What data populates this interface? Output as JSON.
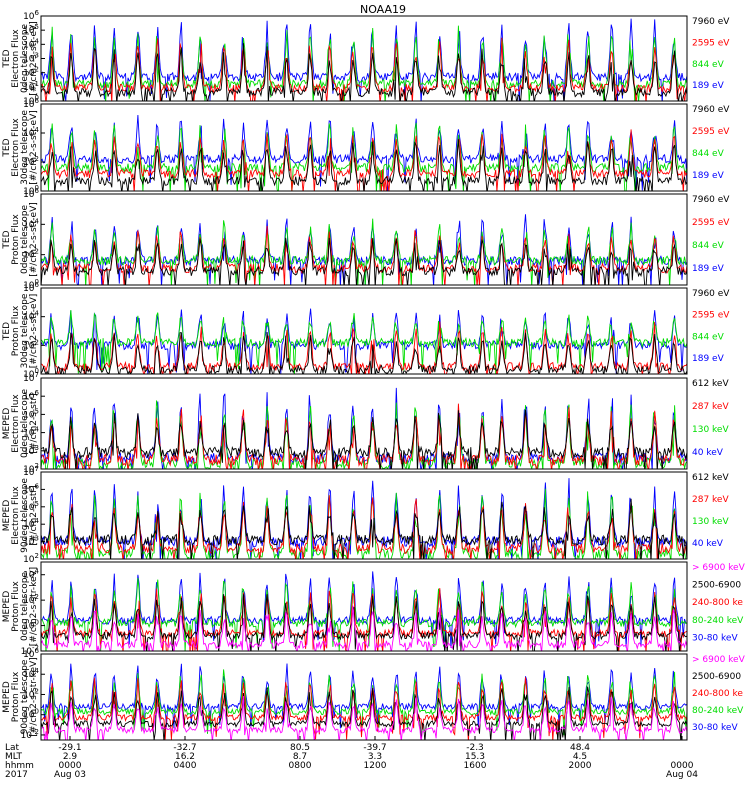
{
  "title": "NOAA19",
  "colors": {
    "black": "#000000",
    "red": "#ff0000",
    "green": "#00dd00",
    "blue": "#0000ff",
    "magenta": "#ff00ff"
  },
  "panels": [
    {
      "id": "ted-e-0deg",
      "ylabel": [
        "TED",
        "Electron Flux",
        "0deg telescope",
        "[#/cm2-s-str-eV]"
      ],
      "yticks": [
        "10^0",
        "10^1",
        "10^2",
        "10^3",
        "10^4",
        "10^5",
        "10^6"
      ],
      "log_min": 0,
      "log_max": 6,
      "legend": [
        {
          "label": "7960 eV",
          "color": "#000000"
        },
        {
          "label": "2595 eV",
          "color": "#ff0000"
        },
        {
          "label": "844 eV",
          "color": "#00dd00"
        },
        {
          "label": "189 eV",
          "color": "#0000ff"
        }
      ]
    },
    {
      "id": "ted-e-30deg",
      "ylabel": [
        "TED",
        "Electron Flux",
        "30deg telescope",
        "[#/cm2-s-str-eV]"
      ],
      "yticks": [
        "10^0",
        "10^2",
        "10^4",
        "10^6"
      ],
      "log_min": 0,
      "log_max": 6,
      "legend": [
        {
          "label": "7960 eV",
          "color": "#000000"
        },
        {
          "label": "2595 eV",
          "color": "#ff0000"
        },
        {
          "label": "844 eV",
          "color": "#00dd00"
        },
        {
          "label": "189 eV",
          "color": "#0000ff"
        }
      ]
    },
    {
      "id": "ted-p-0deg",
      "ylabel": [
        "TED",
        "Proton Flux",
        "0deg telescope",
        "[#/cm2-s-str-eV]"
      ],
      "yticks": [
        "10^0",
        "10^2",
        "10^4",
        "10^6"
      ],
      "log_min": 0,
      "log_max": 6,
      "legend": [
        {
          "label": "7960 eV",
          "color": "#000000"
        },
        {
          "label": "2595 eV",
          "color": "#ff0000"
        },
        {
          "label": "844 eV",
          "color": "#00dd00"
        },
        {
          "label": "189 eV",
          "color": "#0000ff"
        }
      ]
    },
    {
      "id": "ted-p-30deg",
      "ylabel": [
        "TED",
        "Proton Flux",
        "30deg telescope",
        "[#/cm2-s-str-eV]"
      ],
      "yticks": [
        "10^0",
        "10^2",
        "10^4",
        "10^6"
      ],
      "log_min": 0,
      "log_max": 6,
      "legend": [
        {
          "label": "7960 eV",
          "color": "#000000"
        },
        {
          "label": "2595 eV",
          "color": "#ff0000"
        },
        {
          "label": "844 eV",
          "color": "#00dd00"
        },
        {
          "label": "189 eV",
          "color": "#0000ff"
        }
      ]
    },
    {
      "id": "meped-e-0deg",
      "ylabel": [
        "MEPED",
        "Electron Flux",
        "0deg telescope",
        "[#/cm2-s-str]"
      ],
      "yticks": [
        "10^2",
        "10^3",
        "10^4",
        "10^5",
        "10^6",
        "10^7"
      ],
      "log_min": 2,
      "log_max": 7,
      "legend": [
        {
          "label": "612 keV",
          "color": "#000000"
        },
        {
          "label": "287 keV",
          "color": "#ff0000"
        },
        {
          "label": "130 keV",
          "color": "#00dd00"
        },
        {
          "label": "40 keV",
          "color": "#0000ff"
        }
      ]
    },
    {
      "id": "meped-e-90deg",
      "ylabel": [
        "MEPED",
        "Electron Flux",
        "90deg telescope",
        "[#/cm2-s-str]"
      ],
      "yticks": [
        "10^2",
        "10^3",
        "10^4",
        "10^5",
        "10^6",
        "10^7"
      ],
      "log_min": 2,
      "log_max": 7,
      "legend": [
        {
          "label": "612 keV",
          "color": "#000000"
        },
        {
          "label": "287 keV",
          "color": "#ff0000"
        },
        {
          "label": "130 keV",
          "color": "#00dd00"
        },
        {
          "label": "40 keV",
          "color": "#0000ff"
        }
      ]
    },
    {
      "id": "meped-p-0deg",
      "ylabel": [
        "MEPED",
        "Proton Flux",
        "0deg telescope",
        "[#/cm2-s-str-keV]"
      ],
      "yticks": [
        "10^-2",
        "10^0",
        "10^2",
        "10^4"
      ],
      "log_min": -2,
      "log_max": 5,
      "legend": [
        {
          "label": "> 6900 keV",
          "color": "#ff00ff"
        },
        {
          "label": "2500-6900",
          "color": "#000000"
        },
        {
          "label": "240-800 ke",
          "color": "#ff0000"
        },
        {
          "label": "80-240 keV",
          "color": "#00dd00"
        },
        {
          "label": "30-80 keV",
          "color": "#0000ff"
        }
      ]
    },
    {
      "id": "meped-p-90deg",
      "ylabel": [
        "MEPED",
        "Proton Flux",
        "90deg telescope",
        "[#/cm2-s-str-keV]"
      ],
      "yticks": [
        "10^-2",
        "10^0",
        "10^2",
        "10^4",
        "10^6"
      ],
      "log_min": -2.5,
      "log_max": 6,
      "legend": [
        {
          "label": "> 6900 keV",
          "color": "#ff00ff"
        },
        {
          "label": "2500-6900",
          "color": "#000000"
        },
        {
          "label": "240-800 ke",
          "color": "#ff0000"
        },
        {
          "label": "80-240 keV",
          "color": "#00dd00"
        },
        {
          "label": "30-80 keV",
          "color": "#0000ff"
        }
      ]
    }
  ],
  "x_axis": {
    "row_labels": [
      "Lat",
      "MLT",
      "hhmm",
      "2017"
    ],
    "ticks": [
      {
        "lat": "-29.1",
        "mlt": "2.9",
        "hhmm": "0000",
        "date": "Aug 03"
      },
      {
        "lat": "-32.7",
        "mlt": "16.2",
        "hhmm": "0400",
        "date": ""
      },
      {
        "lat": "80.5",
        "mlt": "8.7",
        "hhmm": "0800",
        "date": ""
      },
      {
        "lat": "-39.7",
        "mlt": "3.3",
        "hhmm": "1200",
        "date": ""
      },
      {
        "lat": "-2.3",
        "mlt": "15.3",
        "hhmm": "1600",
        "date": ""
      },
      {
        "lat": "48.4",
        "mlt": "4.5",
        "hhmm": "2000",
        "date": ""
      },
      {
        "lat": "",
        "mlt": "",
        "hhmm": "0000",
        "date": "Aug 04"
      }
    ]
  },
  "chart_data": {
    "type": "line",
    "title": "NOAA19",
    "x_unit": "hhmm",
    "xlim": [
      "0000",
      "0000"
    ],
    "x_ticks": [
      "0000",
      "0400",
      "0800",
      "1200",
      "1600",
      "2000",
      "0000"
    ],
    "yscale": "log",
    "num_panels": 8,
    "pass_count": 15,
    "series_per_panel": {
      "TED Electron 0deg": [
        "7960 eV",
        "2595 eV",
        "844 eV",
        "189 eV"
      ],
      "TED Electron 30deg": [
        "7960 eV",
        "2595 eV",
        "844 eV",
        "189 eV"
      ],
      "TED Proton 0deg": [
        "7960 eV",
        "2595 eV",
        "844 eV",
        "189 eV"
      ],
      "TED Proton 30deg": [
        "7960 eV",
        "2595 eV",
        "844 eV",
        "189 eV"
      ],
      "MEPED Electron 0deg": [
        "612 keV",
        "287 keV",
        "130 keV",
        "40 keV"
      ],
      "MEPED Electron 90deg": [
        "612 keV",
        "287 keV",
        "130 keV",
        "40 keV"
      ],
      "MEPED Proton 0deg": [
        "> 6900 keV",
        "2500-6900",
        "240-800 ke",
        "80-240 keV",
        "30-80 keV"
      ],
      "MEPED Proton 90deg": [
        "> 6900 keV",
        "2500-6900",
        "240-800 ke",
        "80-240 keV",
        "30-80 keV"
      ]
    },
    "baseline_log10": {
      "TED Electron 0deg": {
        "189 eV": 1.7,
        "844 eV": 1.2,
        "2595 eV": 0.9,
        "7960 eV": 0.6
      },
      "TED Electron 30deg": {
        "189 eV": 2.2,
        "844 eV": 1.6,
        "2595 eV": 1.2,
        "7960 eV": 0.7
      },
      "TED Proton 0deg": {
        "189 eV": 1.6,
        "844 eV": 1.6,
        "2595 eV": 1.1,
        "7960 eV": 0.9
      },
      "TED Proton 30deg": {
        "189 eV": 2.0,
        "844 eV": 2.2,
        "2595 eV": 0.5,
        "7960 eV": 0.3
      },
      "MEPED Electron 0deg": {
        "40 keV": 2.6,
        "130 keV": 2.3,
        "287 keV": 2.5,
        "612 keV": 2.9
      },
      "MEPED Electron 90deg": {
        "40 keV": 3.0,
        "130 keV": 2.3,
        "287 keV": 2.6,
        "612 keV": 3.1
      },
      "MEPED Proton 0deg": {
        "30-80 keV": 0.4,
        "80-240 keV": 0.2,
        "240-800 ke": -0.6,
        "2500-6900": -0.8,
        "> 6900 keV": -1.5
      },
      "MEPED Proton 90deg": {
        "30-80 keV": 0.8,
        "80-240 keV": 0.3,
        "240-800 ke": -0.3,
        "2500-6900": -0.9,
        "> 6900 keV": -1.5
      }
    },
    "peak_log10": {
      "TED Electron 0deg": 5.8,
      "TED Electron 30deg": 5.2,
      "TED Proton 0deg": 4.5,
      "TED Proton 30deg": 4.6,
      "MEPED Electron 0deg": 6.5,
      "MEPED Electron 90deg": 6.6,
      "MEPED Proton 0deg": 4.3,
      "MEPED Proton 90deg": 5.0
    }
  }
}
